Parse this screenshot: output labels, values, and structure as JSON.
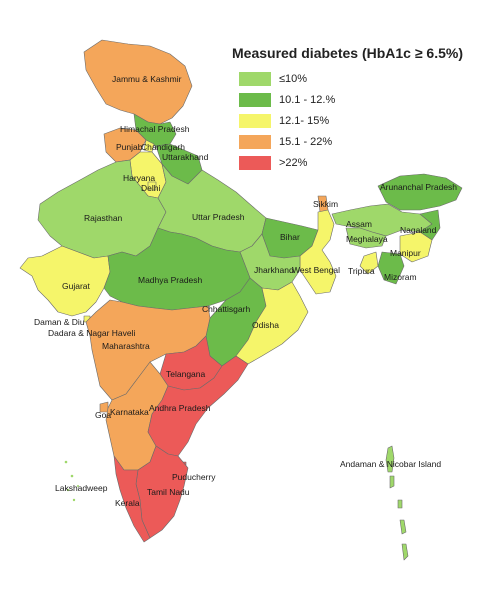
{
  "legend": {
    "title": "Measured diabetes (HbA1c ≥ 6.5%)",
    "items": [
      {
        "label": "≤10%",
        "color": "#9fd86a"
      },
      {
        "label": "10.1 - 12.%",
        "color": "#6cbb4a"
      },
      {
        "label": "12.1- 15%",
        "color": "#f5f56a"
      },
      {
        "label": "15.1 - 22%",
        "color": "#f4a65a"
      },
      {
        "label": ">22%",
        "color": "#ec5a58"
      }
    ]
  },
  "states": [
    {
      "label": "Jammu & Kashmir",
      "category": "15.1 - 22%"
    },
    {
      "label": "Himachal Pradesh",
      "category": "10.1 - 12.%"
    },
    {
      "label": "Punjab",
      "category": "15.1 - 22%"
    },
    {
      "label": "Chandigarh",
      "category": "12.1- 15%"
    },
    {
      "label": "Uttarakhand",
      "category": "10.1 - 12.%"
    },
    {
      "label": "Haryana",
      "category": "12.1- 15%"
    },
    {
      "label": "Delhi",
      "category": "12.1- 15%"
    },
    {
      "label": "Rajasthan",
      "category": "≤10%"
    },
    {
      "label": "Uttar Pradesh",
      "category": "≤10%"
    },
    {
      "label": "Bihar",
      "category": "10.1 - 12.%"
    },
    {
      "label": "Sikkim",
      "category": "15.1 - 22%"
    },
    {
      "label": "Arunanchal Pradesh",
      "category": "10.1 - 12.%"
    },
    {
      "label": "Assam",
      "category": "≤10%"
    },
    {
      "label": "Meghalaya",
      "category": "≤10%"
    },
    {
      "label": "Nagaland",
      "category": "10.1 - 12.%"
    },
    {
      "label": "Manipur",
      "category": "12.1- 15%"
    },
    {
      "label": "Tripura",
      "category": "12.1- 15%"
    },
    {
      "label": "Mizoram",
      "category": "10.1 - 12.%"
    },
    {
      "label": "West Bengal",
      "category": "12.1- 15%"
    },
    {
      "label": "Jharkhand",
      "category": "≤10%"
    },
    {
      "label": "Gujarat",
      "category": "12.1- 15%"
    },
    {
      "label": "Madhya Pradesh",
      "category": "10.1 - 12.%"
    },
    {
      "label": "Chhattisgarh",
      "category": "10.1 - 12.%"
    },
    {
      "label": "Odisha",
      "category": "12.1- 15%"
    },
    {
      "label": "Daman & Diu",
      "category": "12.1- 15%"
    },
    {
      "label": "Dadara & Nagar Haveli",
      "category": "12.1- 15%"
    },
    {
      "label": "Maharashtra",
      "category": "15.1 - 22%"
    },
    {
      "label": "Telangana",
      "category": ">22%"
    },
    {
      "label": "Goa",
      "category": "15.1 - 22%"
    },
    {
      "label": "Karnataka",
      "category": "15.1 - 22%"
    },
    {
      "label": "Andhra Pradesh",
      "category": ">22%"
    },
    {
      "label": "Puducherry",
      "category": ">22%"
    },
    {
      "label": "Tamil Nadu",
      "category": ">22%"
    },
    {
      "label": "Kerala",
      "category": ">22%"
    },
    {
      "label": "Lakshadweep",
      "category": "≤10%"
    },
    {
      "label": "Andaman & Nicobar Island",
      "category": "≤10%"
    }
  ]
}
